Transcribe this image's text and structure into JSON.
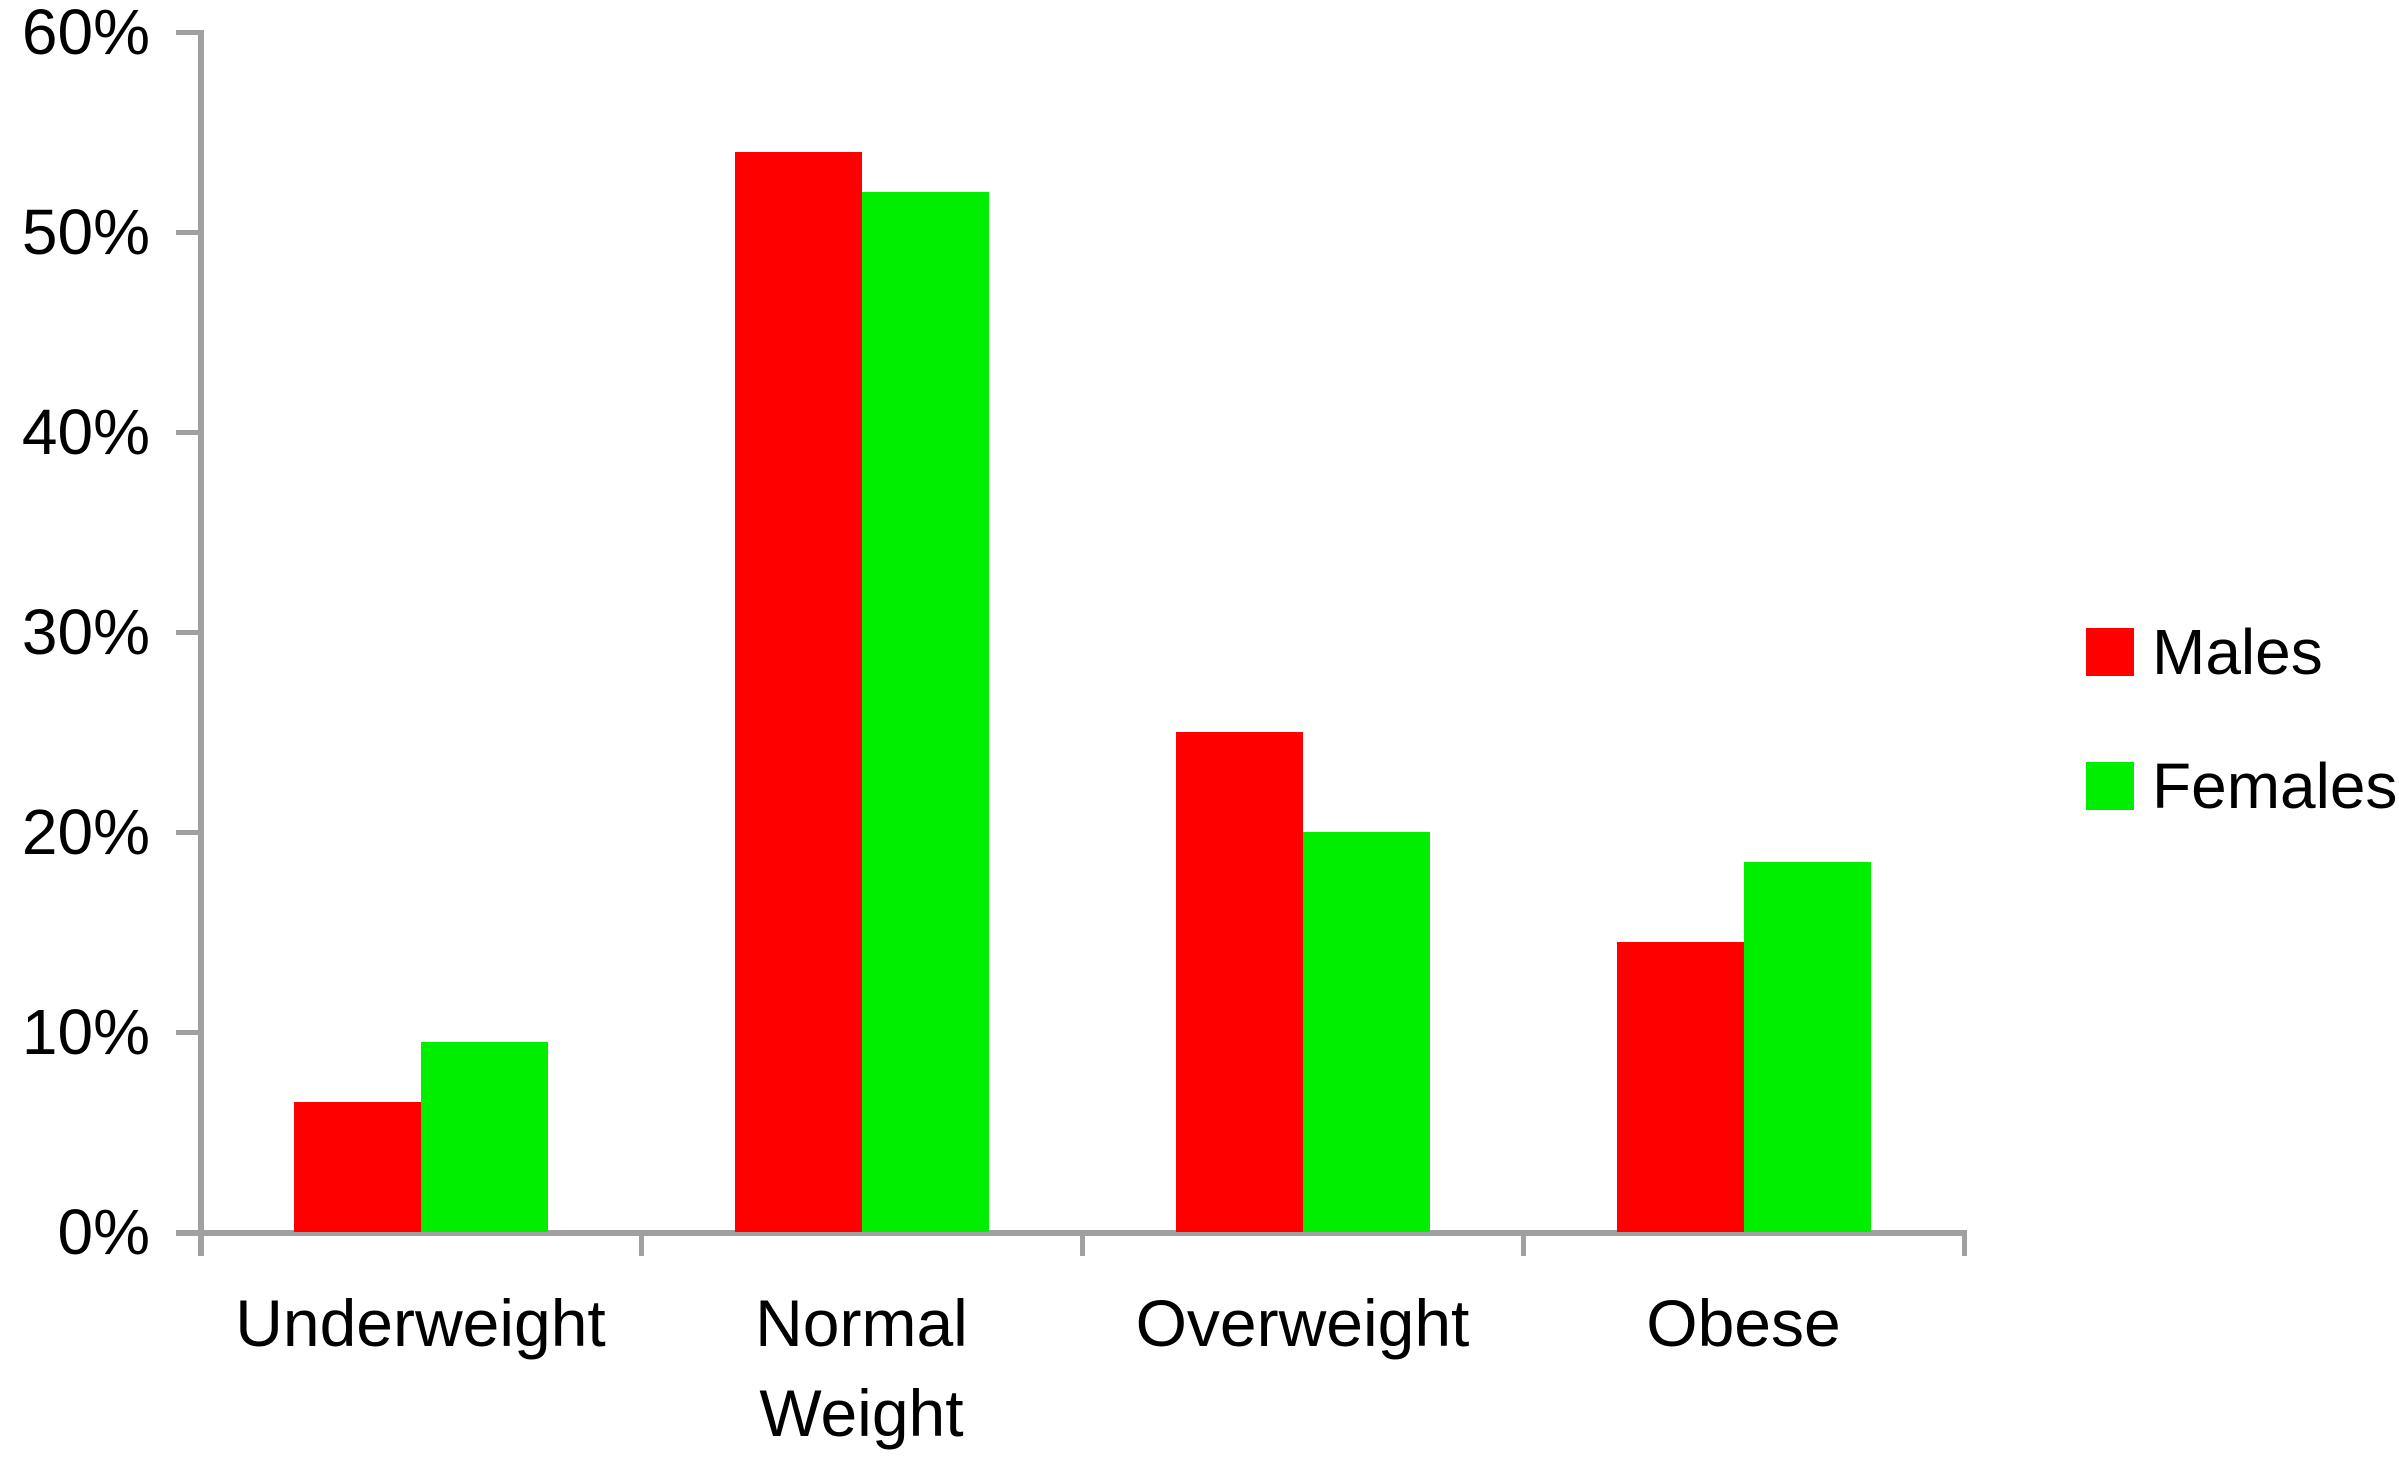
{
  "chart_data": {
    "type": "bar",
    "title": "",
    "categories": [
      "Underweight",
      "Normal Weight",
      "Overweight",
      "Obese"
    ],
    "series": [
      {
        "name": "Males",
        "color": "#ff0000",
        "values": [
          6.5,
          54,
          25,
          14.5
        ]
      },
      {
        "name": "Females",
        "color": "#00ee00",
        "values": [
          9.5,
          52,
          20,
          18.5
        ]
      }
    ],
    "y_axis": {
      "unit": "%",
      "min": 0,
      "max": 60,
      "step": 10,
      "tick_labels": [
        "0%",
        "10%",
        "20%",
        "30%",
        "40%",
        "50%",
        "60%"
      ]
    },
    "x_axis": {
      "label": ""
    },
    "legend_position": "right",
    "grid": false,
    "axis_color": "#a0a0a0",
    "background_color": "#ffffff"
  },
  "legend": {
    "items": [
      {
        "label": "Males",
        "color": "#ff0000"
      },
      {
        "label": "Females",
        "color": "#00ee00"
      }
    ]
  }
}
